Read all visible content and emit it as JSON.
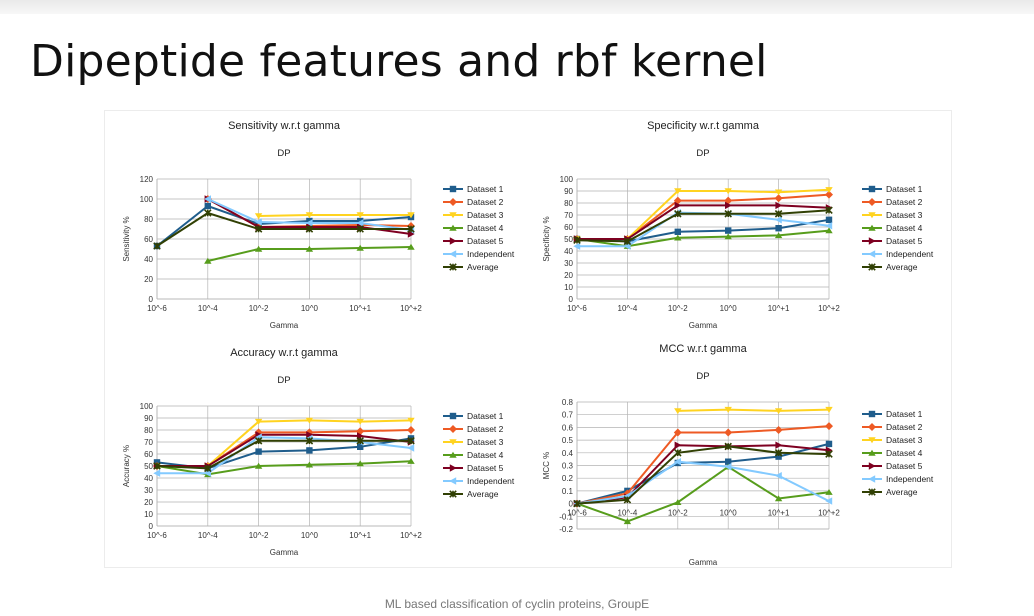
{
  "slide": {
    "title": "Dipeptide features and rbf kernel",
    "footer": "ML based classification of cyclin proteins, GroupE"
  },
  "colors": {
    "Dataset 1": "#1f5d8c",
    "Dataset 2": "#ee5a24",
    "Dataset 3": "#ffd320",
    "Dataset 4": "#579d1c",
    "Dataset 5": "#7e0021",
    "Independent": "#83caff",
    "Average": "#314004"
  },
  "chart_data": [
    {
      "type": "line",
      "title": "Sensitivity w.r.t gamma",
      "subtitle": "DP",
      "xlabel": "Gamma",
      "ylabel": "Sensitivity %",
      "x": [
        "10^-6",
        "10^-4",
        "10^-2",
        "10^0",
        "10^+1",
        "10^+2"
      ],
      "ylim": [
        0,
        120
      ],
      "yticks": [
        0,
        20,
        40,
        60,
        80,
        100,
        120
      ],
      "grid": true,
      "legend": "right",
      "series": [
        {
          "name": "Dataset 1",
          "values": [
            53,
            93,
            75,
            78,
            78,
            82
          ]
        },
        {
          "name": "Dataset 2",
          "values": [
            null,
            100,
            72,
            73,
            74,
            73
          ]
        },
        {
          "name": "Dataset 3",
          "values": [
            null,
            null,
            83,
            84,
            84,
            84
          ]
        },
        {
          "name": "Dataset 4",
          "values": [
            null,
            38,
            50,
            50,
            51,
            52
          ]
        },
        {
          "name": "Dataset 5",
          "values": [
            null,
            100,
            72,
            72,
            72,
            65
          ]
        },
        {
          "name": "Independent",
          "values": [
            null,
            100,
            77,
            76,
            76,
            69
          ]
        },
        {
          "name": "Average",
          "values": [
            53,
            86,
            70,
            70,
            70,
            70
          ]
        }
      ]
    },
    {
      "type": "line",
      "title": "Specificity w.r.t gamma",
      "subtitle": "DP",
      "xlabel": "Gamma",
      "ylabel": "Specificity %",
      "x": [
        "10^-6",
        "10^-4",
        "10^-2",
        "10^0",
        "10^+1",
        "10^+2"
      ],
      "ylim": [
        0,
        100
      ],
      "yticks": [
        0,
        10,
        20,
        30,
        40,
        50,
        60,
        70,
        80,
        90,
        100
      ],
      "grid": true,
      "legend": "right",
      "series": [
        {
          "name": "Dataset 1",
          "values": [
            50,
            48,
            56,
            57,
            59,
            66
          ]
        },
        {
          "name": "Dataset 2",
          "values": [
            50,
            50,
            82,
            82,
            84,
            87
          ]
        },
        {
          "name": "Dataset 3",
          "values": [
            50,
            50,
            90,
            90,
            89,
            91
          ]
        },
        {
          "name": "Dataset 4",
          "values": [
            50,
            44,
            51,
            52,
            53,
            57
          ]
        },
        {
          "name": "Dataset 5",
          "values": [
            50,
            50,
            78,
            78,
            78,
            76
          ]
        },
        {
          "name": "Independent",
          "values": [
            44,
            44,
            72,
            71,
            66,
            61
          ]
        },
        {
          "name": "Average",
          "values": [
            49,
            48,
            71,
            71,
            71,
            74
          ]
        }
      ]
    },
    {
      "type": "line",
      "title": "Accuracy w.r.t gamma",
      "subtitle": "DP",
      "xlabel": "Gamma",
      "ylabel": "Accuracy %",
      "x": [
        "10^-6",
        "10^-4",
        "10^-2",
        "10^0",
        "10^+1",
        "10^+2"
      ],
      "ylim": [
        0,
        100
      ],
      "yticks": [
        0,
        10,
        20,
        30,
        40,
        50,
        60,
        70,
        80,
        90,
        100
      ],
      "grid": true,
      "legend": "right",
      "series": [
        {
          "name": "Dataset 1",
          "values": [
            53,
            48,
            62,
            63,
            66,
            73
          ]
        },
        {
          "name": "Dataset 2",
          "values": [
            50,
            50,
            78,
            78,
            79,
            80
          ]
        },
        {
          "name": "Dataset 3",
          "values": [
            50,
            50,
            87,
            88,
            87,
            88
          ]
        },
        {
          "name": "Dataset 4",
          "values": [
            50,
            43,
            50,
            51,
            52,
            54
          ]
        },
        {
          "name": "Dataset 5",
          "values": [
            50,
            50,
            76,
            76,
            75,
            70
          ]
        },
        {
          "name": "Independent",
          "values": [
            44,
            44,
            74,
            73,
            70,
            65
          ]
        },
        {
          "name": "Average",
          "values": [
            50,
            48,
            71,
            71,
            71,
            71
          ]
        }
      ]
    },
    {
      "type": "line",
      "title": "MCC w.r.t gamma",
      "subtitle": "DP",
      "xlabel": "Gamma",
      "ylabel": "MCC %",
      "x": [
        "10^-6",
        "10^-4",
        "10^-2",
        "10^0",
        "10^+1",
        "10^+2"
      ],
      "ylim": [
        -0.2,
        0.8
      ],
      "yticks": [
        -0.2,
        -0.1,
        0,
        0.1,
        0.2,
        0.3,
        0.4,
        0.5,
        0.6,
        0.7,
        0.8
      ],
      "grid": true,
      "legend": "right",
      "series": [
        {
          "name": "Dataset 1",
          "values": [
            0,
            0.1,
            0.32,
            0.33,
            0.37,
            0.47
          ]
        },
        {
          "name": "Dataset 2",
          "values": [
            0,
            0.08,
            0.56,
            0.56,
            0.58,
            0.61
          ]
        },
        {
          "name": "Dataset 3",
          "values": [
            null,
            null,
            0.73,
            0.74,
            0.73,
            0.74
          ]
        },
        {
          "name": "Dataset 4",
          "values": [
            0,
            -0.14,
            0.01,
            0.29,
            0.04,
            0.09
          ]
        },
        {
          "name": "Dataset 5",
          "values": [
            0,
            0.05,
            0.46,
            0.45,
            0.46,
            0.42
          ]
        },
        {
          "name": "Independent",
          "values": [
            0,
            0.06,
            0.33,
            0.29,
            0.22,
            0.02
          ]
        },
        {
          "name": "Average",
          "values": [
            0,
            0.03,
            0.4,
            0.45,
            0.4,
            0.39
          ]
        }
      ]
    }
  ]
}
